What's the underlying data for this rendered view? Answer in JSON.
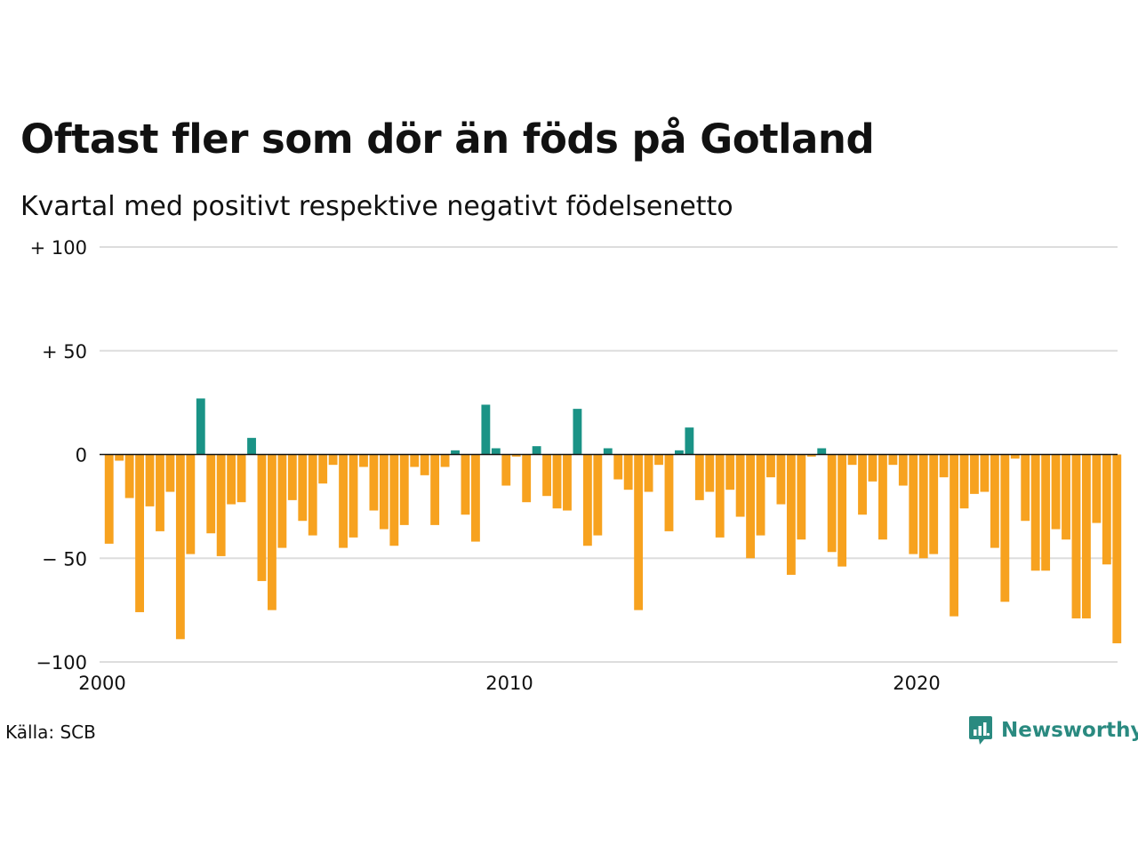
{
  "title": "Oftast fler som dör än föds på Gotland",
  "subtitle": "Kvartal med positivt respektive negativt födelsenetto",
  "source": "Källa: SCB",
  "logo_text": "Newsworthy",
  "chart_data": {
    "type": "bar",
    "x_start": 2000.0,
    "x_step": 0.25,
    "ylim": [
      -100,
      100
    ],
    "ytick_labels": [
      {
        "value": 100,
        "label": "+ 100"
      },
      {
        "value": 50,
        "label": "+  50"
      },
      {
        "value": 0,
        "label": "0"
      },
      {
        "value": -50,
        "label": "− 50"
      },
      {
        "value": -100,
        "label": "−100"
      }
    ],
    "xlim": [
      2000,
      2025
    ],
    "xtick_labels": [
      {
        "value": 2000,
        "label": "2000"
      },
      {
        "value": 2010,
        "label": "2010"
      },
      {
        "value": 2020,
        "label": "2020"
      }
    ],
    "grid": true,
    "colors": {
      "positive": "#1a9386",
      "negative": "#f7a21f",
      "grid": "#dddddd",
      "zero_line": "#111111"
    },
    "values": [
      -43,
      -3,
      -21,
      -76,
      -25,
      -37,
      -18,
      -89,
      -48,
      27,
      -38,
      -49,
      -24,
      -23,
      8,
      -61,
      -75,
      -45,
      -22,
      -32,
      -39,
      -14,
      -5,
      -45,
      -40,
      -6,
      -27,
      -36,
      -44,
      -34,
      -6,
      -10,
      -34,
      -6,
      2,
      -29,
      -42,
      24,
      3,
      -15,
      -1,
      -23,
      4,
      -20,
      -26,
      -27,
      22,
      -44,
      -39,
      3,
      -12,
      -17,
      -75,
      -18,
      -5,
      -37,
      2,
      13,
      -22,
      -18,
      -40,
      -17,
      -30,
      -50,
      -39,
      -11,
      -24,
      -58,
      -41,
      -1,
      3,
      -47,
      -54,
      -5,
      -29,
      -13,
      -41,
      -5,
      -15,
      -48,
      -50,
      -48,
      -11,
      -78,
      -26,
      -19,
      -18,
      -45,
      -71,
      -2,
      -32,
      -56,
      -56,
      -36,
      -41,
      -79,
      -79,
      -33,
      -53,
      -91
    ]
  }
}
